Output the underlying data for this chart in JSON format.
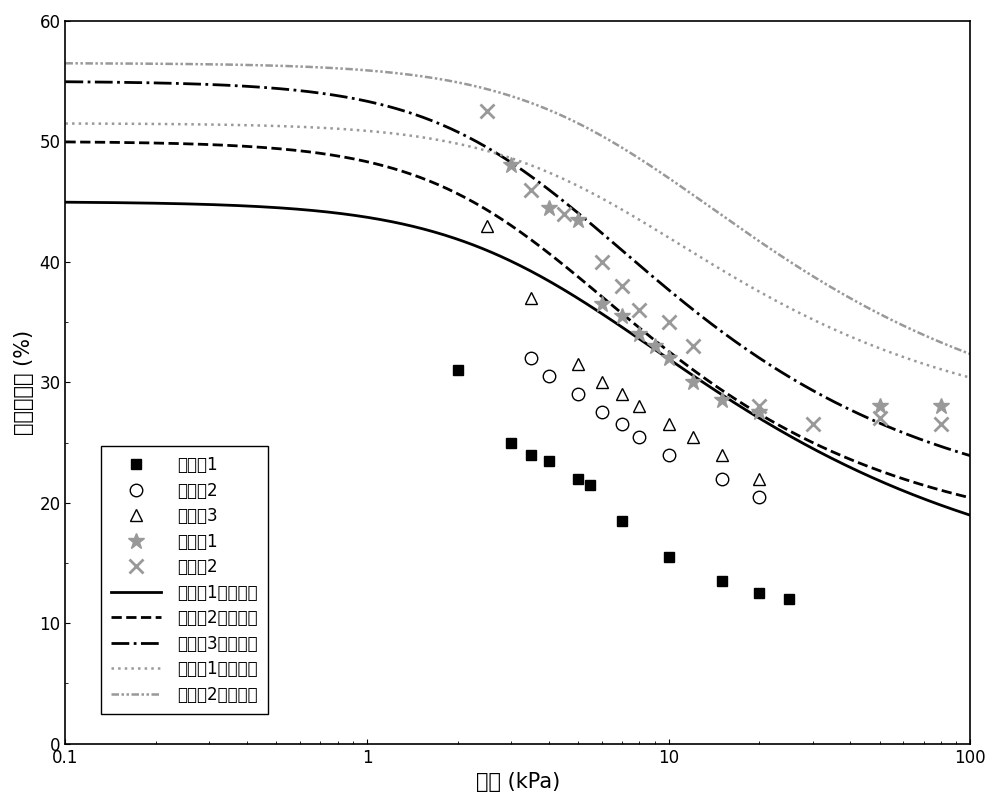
{
  "xlabel": "吸力 (kPa)",
  "ylabel": "体积含水量 (%)",
  "xlim": [
    0.1,
    100
  ],
  "ylim": [
    0,
    60
  ],
  "yticks": [
    0,
    10,
    20,
    30,
    40,
    50,
    60
  ],
  "background_color": "#ffffff",
  "series": {
    "control1": {
      "label": "对比例1",
      "x": [
        2.0,
        3.0,
        3.5,
        4.0,
        5.0,
        5.5,
        7.0,
        10.0,
        15.0,
        20.0,
        25.0
      ],
      "y": [
        31.0,
        25.0,
        24.0,
        23.5,
        22.0,
        21.5,
        18.5,
        15.5,
        13.5,
        12.5,
        12.0
      ],
      "color": "#000000",
      "marker": "s",
      "markersize": 7,
      "markerfacecolor": "#000000"
    },
    "control2": {
      "label": "对比例2",
      "x": [
        3.5,
        4.0,
        5.0,
        6.0,
        7.0,
        8.0,
        10.0,
        15.0,
        20.0
      ],
      "y": [
        32.0,
        30.5,
        29.0,
        27.5,
        26.5,
        25.5,
        24.0,
        22.0,
        20.5
      ],
      "color": "#000000",
      "marker": "o",
      "markersize": 9,
      "markerfacecolor": "none"
    },
    "control3": {
      "label": "对比例3",
      "x": [
        2.5,
        3.5,
        5.0,
        6.0,
        7.0,
        8.0,
        10.0,
        12.0,
        15.0,
        20.0
      ],
      "y": [
        43.0,
        37.0,
        31.5,
        30.0,
        29.0,
        28.0,
        26.5,
        25.5,
        24.0,
        22.0
      ],
      "color": "#000000",
      "marker": "^",
      "markersize": 9,
      "markerfacecolor": "none"
    },
    "example1": {
      "label": "实施例1",
      "x": [
        3.0,
        4.0,
        5.0,
        6.0,
        7.0,
        8.0,
        9.0,
        10.0,
        12.0,
        15.0,
        20.0,
        50.0,
        80.0
      ],
      "y": [
        48.0,
        44.5,
        43.5,
        36.5,
        35.5,
        34.0,
        33.0,
        32.0,
        30.0,
        28.5,
        27.5,
        28.0,
        28.0
      ],
      "color": "#999999",
      "marker": "*",
      "markersize": 12,
      "markerfacecolor": "#999999"
    },
    "example2": {
      "label": "实施例2",
      "x": [
        2.5,
        3.5,
        4.5,
        6.0,
        7.0,
        8.0,
        10.0,
        12.0,
        20.0,
        30.0,
        50.0,
        80.0
      ],
      "y": [
        52.5,
        46.0,
        44.0,
        40.0,
        38.0,
        36.0,
        35.0,
        33.0,
        28.0,
        26.5,
        27.0,
        26.5
      ],
      "color": "#999999",
      "marker": "x",
      "markersize": 10,
      "markerfacecolor": "#999999",
      "markeredgewidth": 2.0
    }
  },
  "curves": {
    "curve1": {
      "label": "对比例1拟合曲线",
      "color": "#000000",
      "linestyle": "solid",
      "linewidth": 2.0,
      "vg_theta_r": 11.0,
      "vg_theta_s": 45.0,
      "vg_alpha": 0.25,
      "vg_n": 1.45
    },
    "curve2": {
      "label": "对比例2拟合曲线",
      "color": "#000000",
      "linestyle": "dashed",
      "linewidth": 2.0,
      "vg_theta_r": 16.0,
      "vg_theta_s": 50.0,
      "vg_alpha": 0.3,
      "vg_n": 1.6
    },
    "curve3": {
      "label": "对比例3拟合曲线",
      "color": "#000000",
      "linestyle": "dashdot",
      "linewidth": 2.0,
      "vg_theta_r": 18.0,
      "vg_theta_s": 55.0,
      "vg_alpha": 0.28,
      "vg_n": 1.55
    },
    "curve4": {
      "label": "实施例1拟合曲线",
      "color": "#999999",
      "linestyle": "dotted",
      "linewidth": 1.8,
      "vg_theta_r": 25.0,
      "vg_theta_s": 51.5,
      "vg_alpha": 0.18,
      "vg_n": 1.55
    },
    "curve5": {
      "label": "实施例2拟合曲线",
      "color": "#999999",
      "linestyle": "dashdotdotted",
      "linewidth": 1.8,
      "vg_theta_r": 24.0,
      "vg_theta_s": 56.5,
      "vg_alpha": 0.15,
      "vg_n": 1.5
    }
  },
  "legend_fontsize": 12,
  "axis_fontsize": 15,
  "tick_fontsize": 12
}
